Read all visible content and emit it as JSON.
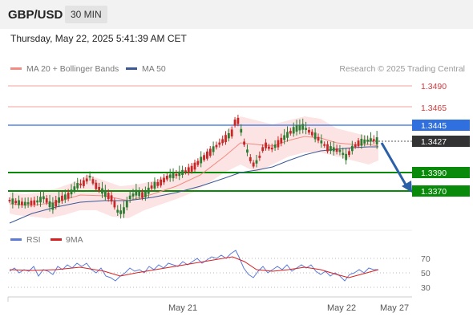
{
  "header": {
    "symbol": "GBP/USD",
    "interval": "30 MIN"
  },
  "datetime": "Thursday, May 22, 2025 5:41:39 AM CET",
  "legend": {
    "ma20": {
      "label": "MA 20 + Bollinger Bands",
      "color": "#f28b82"
    },
    "ma50": {
      "label": "MA 50",
      "color": "#3b5998"
    }
  },
  "credit": "Research © 2025 Trading Central",
  "price_levels": [
    {
      "label": "1.3490",
      "value": 1.349,
      "type": "resistance"
    },
    {
      "label": "1.3465",
      "value": 1.3465,
      "type": "resistance"
    },
    {
      "label": "1.3445",
      "value": 1.3445,
      "type": "pivot"
    },
    {
      "label": "1.3427",
      "value": 1.3427,
      "type": "last"
    },
    {
      "label": "1.3390",
      "value": 1.339,
      "type": "support"
    },
    {
      "label": "1.3370",
      "value": 1.337,
      "type": "support"
    }
  ],
  "rsi_panel": {
    "legend_rsi": "RSI",
    "legend_9ma": "9MA",
    "rsi_color": "#5b7bd5",
    "ma_color": "#d92020",
    "levels": [
      "70",
      "50",
      "30"
    ]
  },
  "x_axis": [
    "May 21",
    "May 22",
    "May 27"
  ],
  "colors": {
    "up": "#2e7d32",
    "down": "#c62828",
    "pivot": "#2f6fde",
    "support": "#0a8a0a",
    "resistance": "#e06060",
    "arrow": "#2b5fa8"
  }
}
